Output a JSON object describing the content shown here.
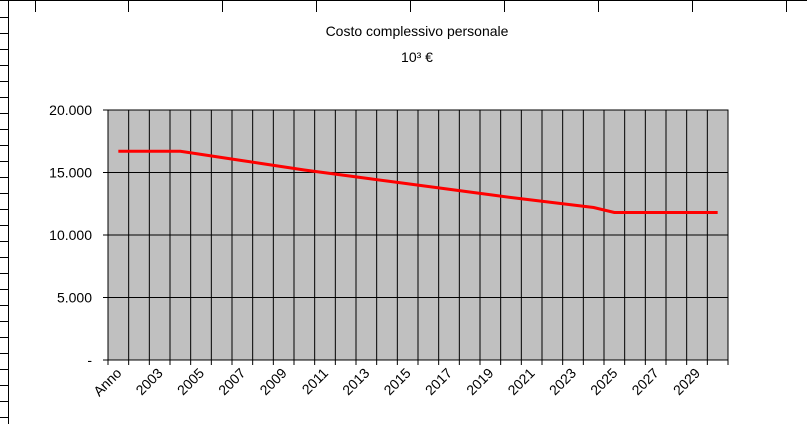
{
  "chart_data": {
    "type": "line",
    "title": "Costo complessivo personale",
    "subtitle": "10³ €",
    "categories": [
      "Anno",
      null,
      "2003",
      null,
      "2005",
      null,
      "2007",
      null,
      "2009",
      null,
      "2011",
      null,
      "2013",
      null,
      "2015",
      null,
      "2017",
      null,
      "2019",
      null,
      "2021",
      null,
      "2023",
      null,
      "2025",
      null,
      "2027",
      null,
      "2029",
      null
    ],
    "series": [
      {
        "name": "Costo complessivo personale",
        "color": "#ff0000",
        "values": [
          16700,
          16700,
          16700,
          16700,
          16450,
          16200,
          15950,
          15700,
          15450,
          15200,
          14980,
          14760,
          14540,
          14320,
          14100,
          13880,
          13660,
          13440,
          13220,
          13000,
          12800,
          12600,
          12400,
          12200,
          11800,
          11800,
          11800,
          11800,
          11800,
          11800
        ]
      }
    ],
    "ylim": [
      0,
      20000
    ],
    "yticks": [
      {
        "value": 0,
        "label": "-"
      },
      {
        "value": 5000,
        "label": "5.000"
      },
      {
        "value": 10000,
        "label": "10.000"
      },
      {
        "value": 15000,
        "label": "15.000"
      },
      {
        "value": 20000,
        "label": "20.000"
      }
    ],
    "grid": true,
    "plot_background": "#c0c0c0"
  }
}
